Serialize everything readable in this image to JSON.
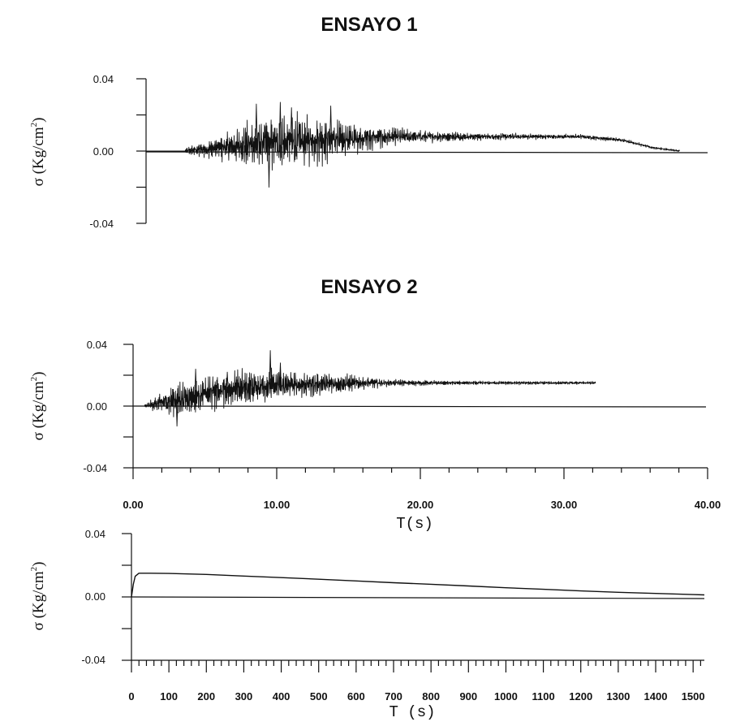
{
  "colors": {
    "ink": "#111111",
    "background": "#ffffff"
  },
  "chart_data": [
    {
      "id": "ensayo1",
      "type": "line",
      "title": "ENSAYO 1",
      "ylabel_pre": "σ (Kg/cm",
      "ylabel_sup": "2",
      "ylabel_post": ")",
      "xlabel": "",
      "xlim": [
        0,
        40
      ],
      "ylim": [
        -0.04,
        0.04
      ],
      "yticks": [
        -0.04,
        0.0,
        0.04
      ],
      "ytick_labels": [
        "-0.04",
        "0.00",
        "0.04"
      ],
      "x_tick_labels": [],
      "zero_line": true,
      "signal": {
        "start": 2.8,
        "end": 38.0,
        "envelope": [
          [
            2.8,
            0.0015
          ],
          [
            5,
            0.006
          ],
          [
            7,
            0.011
          ],
          [
            9,
            0.014
          ],
          [
            11,
            0.013
          ],
          [
            13,
            0.011
          ],
          [
            15,
            0.008
          ],
          [
            17,
            0.005
          ],
          [
            20,
            0.003
          ],
          [
            24,
            0.0018
          ],
          [
            30,
            0.0012
          ],
          [
            38,
            0.0005
          ]
        ],
        "mean": [
          [
            2.8,
            0.0
          ],
          [
            5,
            0.0015
          ],
          [
            8,
            0.004
          ],
          [
            12,
            0.006
          ],
          [
            18,
            0.008
          ],
          [
            25,
            0.008
          ],
          [
            31,
            0.008
          ],
          [
            34,
            0.006
          ],
          [
            36,
            0.002
          ],
          [
            38,
            0.0
          ]
        ],
        "peaks": [
          [
            7.8,
            0.026
          ],
          [
            8.7,
            -0.02
          ],
          [
            9.5,
            0.027
          ],
          [
            10.3,
            0.024
          ],
          [
            13.1,
            0.025
          ]
        ]
      }
    },
    {
      "id": "ensayo2",
      "type": "line",
      "title": "ENSAYO 2",
      "ylabel_pre": "σ (Kg/cm",
      "ylabel_sup": "2",
      "ylabel_post": ")",
      "xlabel": "T(s)",
      "xlim": [
        0,
        40
      ],
      "ylim": [
        -0.04,
        0.04
      ],
      "yticks": [
        -0.04,
        0.0,
        0.04
      ],
      "ytick_labels": [
        "-0.04",
        "0.00",
        "0.04"
      ],
      "x_tick_values": [
        0,
        10,
        20,
        30,
        40
      ],
      "x_tick_labels": [
        "0.00",
        "10.00",
        "20.00",
        "30.00",
        "40.00"
      ],
      "x_minor_step": 2,
      "zero_line": true,
      "signal": {
        "start": 0.8,
        "end": 32.2,
        "envelope": [
          [
            0.8,
            0.001
          ],
          [
            2,
            0.006
          ],
          [
            3.5,
            0.011
          ],
          [
            5,
            0.011
          ],
          [
            7,
            0.01
          ],
          [
            9.5,
            0.011
          ],
          [
            12,
            0.008
          ],
          [
            15,
            0.005
          ],
          [
            18,
            0.002
          ],
          [
            22,
            0.0012
          ],
          [
            32.2,
            0.0008
          ]
        ],
        "mean": [
          [
            0.8,
            0.0
          ],
          [
            2.5,
            0.003
          ],
          [
            4,
            0.006
          ],
          [
            6,
            0.01
          ],
          [
            9,
            0.013
          ],
          [
            12,
            0.014
          ],
          [
            16,
            0.015
          ],
          [
            32.2,
            0.015
          ]
        ],
        "peaks": [
          [
            9.5,
            0.036
          ],
          [
            4.3,
            0.024
          ],
          [
            3.0,
            -0.013
          ],
          [
            6.5,
            0.022
          ],
          [
            10.2,
            0.028
          ]
        ]
      }
    },
    {
      "id": "long",
      "type": "line",
      "title": "",
      "ylabel_pre": "σ (Kg/cm",
      "ylabel_sup": "2",
      "ylabel_post": ")",
      "xlabel": "T (s)",
      "xlim": [
        0,
        1530
      ],
      "ylim": [
        -0.04,
        0.04
      ],
      "yticks": [
        -0.04,
        0.0,
        0.04
      ],
      "ytick_labels": [
        "-0.04",
        "0.00",
        "0.04"
      ],
      "x_tick_values": [
        0,
        100,
        200,
        300,
        400,
        500,
        600,
        700,
        800,
        900,
        1000,
        1100,
        1200,
        1300,
        1400,
        1500
      ],
      "x_tick_labels": [
        "0",
        "100",
        "200",
        "300",
        "400",
        "500",
        "600",
        "700",
        "800",
        "900",
        "1000",
        "1100",
        "1200",
        "1300",
        "1400",
        "1500"
      ],
      "x_minor_step": 20,
      "zero_line": true,
      "series": [
        {
          "x": [
            0,
            5,
            10,
            20,
            30,
            50,
            100,
            150,
            200,
            300,
            400,
            500,
            600,
            700,
            800,
            900,
            1000,
            1100,
            1200,
            1300,
            1400,
            1500,
            1530
          ],
          "y": [
            0.0,
            0.008,
            0.013,
            0.015,
            0.015,
            0.015,
            0.0148,
            0.0145,
            0.0142,
            0.0132,
            0.0122,
            0.0112,
            0.0101,
            0.009,
            0.008,
            0.0069,
            0.0058,
            0.0048,
            0.0038,
            0.0029,
            0.0022,
            0.0015,
            0.0013
          ]
        }
      ]
    }
  ]
}
